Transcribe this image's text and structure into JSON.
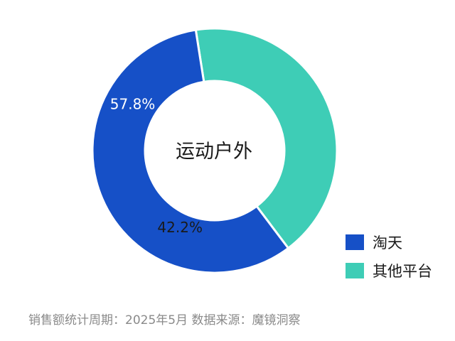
{
  "chart_data": {
    "type": "pie",
    "categories": [
      "淘天",
      "其他平台"
    ],
    "values": [
      57.8,
      42.2
    ],
    "unit": "%",
    "value_labels": [
      "57.8%",
      "42.2%"
    ],
    "colors": [
      "#1650c7",
      "#3ecdb6"
    ],
    "label_colors": [
      "#ffffff",
      "#1a1a1a"
    ],
    "center_label": "运动户外",
    "legend": {
      "position": "bottom-right"
    }
  },
  "legend": {
    "items": [
      {
        "label": "淘天",
        "color": "#1650c7"
      },
      {
        "label": "其他平台",
        "color": "#3ecdb6"
      }
    ]
  },
  "footer": "销售额统计周期：2025年5月 数据来源：魔镜洞察"
}
